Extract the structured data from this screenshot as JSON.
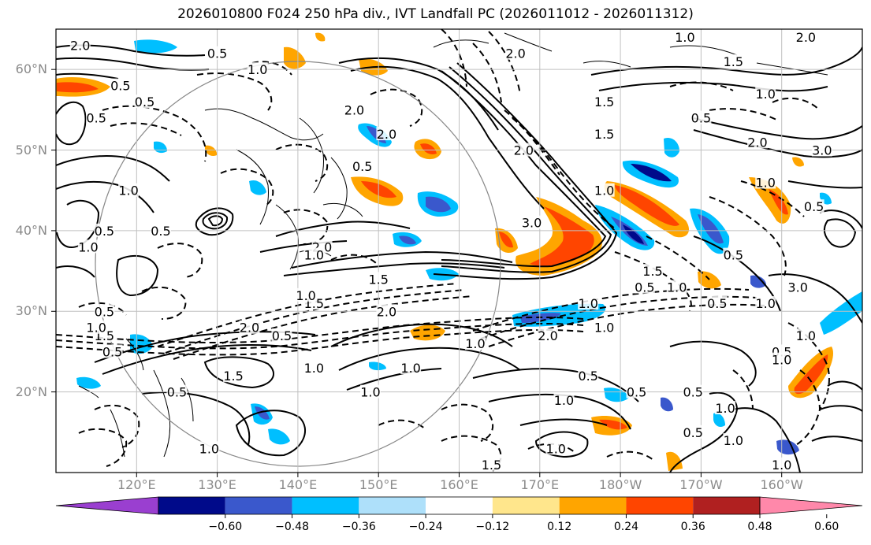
{
  "title": "2026010800 F024 250 hPa div., IVT Landfall PC (2026011012 - 2026011312)",
  "lat_labels": [
    "60°N",
    "50°N",
    "40°N",
    "30°N",
    "20°N"
  ],
  "lon_labels": [
    "120°E",
    "130°E",
    "140°E",
    "150°E",
    "160°E",
    "170°E",
    "180°W",
    "170°W",
    "160°W"
  ],
  "colorbar": {
    "ticks": [
      "−0.60",
      "−0.48",
      "−0.36",
      "−0.24",
      "−0.12",
      "0.12",
      "0.24",
      "0.36",
      "0.48",
      "0.60"
    ],
    "colors": [
      "#9a3fd0",
      "#000a8a",
      "#3a58cc",
      "#00bfff",
      "#aee0fa",
      "#ffffff",
      "#ffe68c",
      "#ffa500",
      "#ff4500",
      "#b02020",
      "#ff88aa"
    ]
  },
  "contour_labels": [
    {
      "text": "2.0",
      "lon": 113,
      "lat": 63
    },
    {
      "text": "0.5",
      "lon": 130,
      "lat": 62
    },
    {
      "text": "1.0",
      "lon": 135,
      "lat": 60
    },
    {
      "text": "2.0",
      "lon": 147,
      "lat": 55
    },
    {
      "text": "2.0",
      "lon": 151,
      "lat": 52
    },
    {
      "text": "2.0",
      "lon": 167,
      "lat": 62
    },
    {
      "text": "1.5",
      "lon": 178,
      "lat": 56
    },
    {
      "text": "1.0",
      "lon": -172,
      "lat": 64
    },
    {
      "text": "1.5",
      "lon": -166,
      "lat": 61
    },
    {
      "text": "2.0",
      "lon": -157,
      "lat": 64
    },
    {
      "text": "0.5",
      "lon": -170,
      "lat": 54
    },
    {
      "text": "1.0",
      "lon": -162,
      "lat": 57
    },
    {
      "text": "2.0",
      "lon": -163,
      "lat": 51
    },
    {
      "text": "3.0",
      "lon": -155,
      "lat": 50
    },
    {
      "text": "1.0",
      "lon": -162,
      "lat": 46
    },
    {
      "text": "0.5",
      "lon": -156,
      "lat": 43
    },
    {
      "text": "1.5",
      "lon": 178,
      "lat": 52
    },
    {
      "text": "1.0",
      "lon": 178,
      "lat": 45
    },
    {
      "text": "2.0",
      "lon": 168,
      "lat": 50
    },
    {
      "text": "0.5",
      "lon": 148,
      "lat": 48
    },
    {
      "text": "3.0",
      "lon": 169,
      "lat": 41
    },
    {
      "text": "1.5",
      "lon": -176,
      "lat": 35
    },
    {
      "text": "1.0",
      "lon": -173,
      "lat": 33
    },
    {
      "text": "0.5",
      "lon": -177,
      "lat": 33
    },
    {
      "text": "0.5",
      "lon": -166,
      "lat": 37
    },
    {
      "text": "3.0",
      "lon": -158,
      "lat": 33
    },
    {
      "text": "1.0",
      "lon": -162,
      "lat": 31
    },
    {
      "text": "0.5",
      "lon": -168,
      "lat": 31
    },
    {
      "text": "1.0",
      "lon": -157,
      "lat": 27
    },
    {
      "text": "0.5",
      "lon": -160,
      "lat": 25
    },
    {
      "text": "1.0",
      "lon": -160,
      "lat": 24
    },
    {
      "text": "1.5",
      "lon": 150,
      "lat": 34
    },
    {
      "text": "2.0",
      "lon": 151,
      "lat": 30
    },
    {
      "text": "1.5",
      "lon": 142,
      "lat": 31
    },
    {
      "text": "1.0",
      "lon": 141,
      "lat": 32
    },
    {
      "text": "2.0",
      "lon": 143,
      "lat": 38
    },
    {
      "text": "1.0",
      "lon": 142,
      "lat": 37
    },
    {
      "text": "2.0",
      "lon": 134,
      "lat": 28
    },
    {
      "text": "0.5",
      "lon": 138,
      "lat": 27
    },
    {
      "text": "1.5",
      "lon": 132,
      "lat": 22
    },
    {
      "text": "1.0",
      "lon": 142,
      "lat": 23
    },
    {
      "text": "0.5",
      "lon": 125,
      "lat": 20
    },
    {
      "text": "1.5",
      "lon": 116,
      "lat": 27
    },
    {
      "text": "0.5",
      "lon": 117,
      "lat": 25
    },
    {
      "text": "1.0",
      "lon": 149,
      "lat": 20
    },
    {
      "text": "1.0",
      "lon": 154,
      "lat": 23
    },
    {
      "text": "1.0",
      "lon": 162,
      "lat": 26
    },
    {
      "text": "2.0",
      "lon": 171,
      "lat": 27
    },
    {
      "text": "1.0",
      "lon": 178,
      "lat": 28
    },
    {
      "text": "1.0",
      "lon": 176,
      "lat": 31
    },
    {
      "text": "0.5",
      "lon": 176,
      "lat": 22
    },
    {
      "text": "1.0",
      "lon": 173,
      "lat": 19
    },
    {
      "text": "0.5",
      "lon": -178,
      "lat": 20
    },
    {
      "text": "0.5",
      "lon": -171,
      "lat": 20
    },
    {
      "text": "1.0",
      "lon": -167,
      "lat": 18
    },
    {
      "text": "0.5",
      "lon": -171,
      "lat": 15
    },
    {
      "text": "1.0",
      "lon": -166,
      "lat": 14
    },
    {
      "text": "1.0",
      "lon": 172,
      "lat": 13
    },
    {
      "text": "1.0",
      "lon": -160,
      "lat": 11
    },
    {
      "text": "1.5",
      "lon": 164,
      "lat": 11
    },
    {
      "text": "1.0",
      "lon": 129,
      "lat": 13
    },
    {
      "text": "1.0",
      "lon": 114,
      "lat": 38
    },
    {
      "text": "0.5",
      "lon": 116,
      "lat": 40
    },
    {
      "text": "1.0",
      "lon": 119,
      "lat": 45
    },
    {
      "text": "0.5",
      "lon": 123,
      "lat": 40
    },
    {
      "text": "0.5",
      "lon": 116,
      "lat": 30
    },
    {
      "text": "1.0",
      "lon": 115,
      "lat": 28
    },
    {
      "text": "0.5",
      "lon": 115,
      "lat": 54
    },
    {
      "text": "0.5",
      "lon": 121,
      "lat": 56
    },
    {
      "text": "0.5",
      "lon": 118,
      "lat": 58
    }
  ]
}
